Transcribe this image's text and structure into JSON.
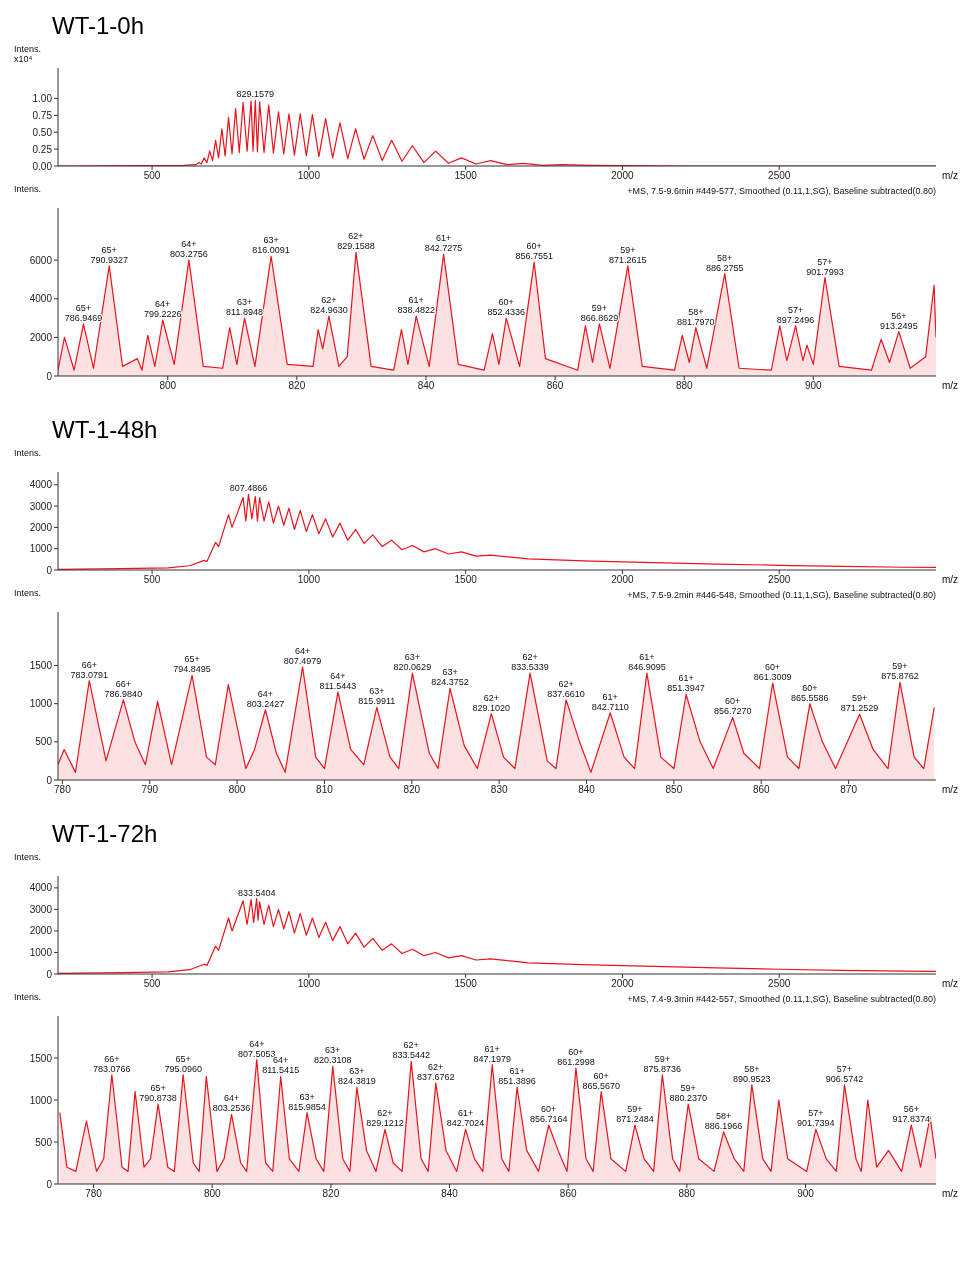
{
  "chart_data": [
    {
      "type": "line",
      "title": "WT-1-0h",
      "ylabel": "Intens.\nx10⁴",
      "xlabel": "m/z",
      "color": "#e8141c",
      "xlim": [
        200,
        3000
      ],
      "xticks": [
        500,
        1000,
        1500,
        2000,
        2500
      ],
      "ylim": [
        0,
        1.45
      ],
      "yticks": [
        {
          "value": 0,
          "label": "0.00"
        },
        {
          "value": 0.25,
          "label": "0.25"
        },
        {
          "value": 0.5,
          "label": "0.50"
        },
        {
          "value": 0.75,
          "label": "0.75"
        },
        {
          "value": 1,
          "label": "1.00"
        }
      ],
      "x": [
        200,
        600,
        640,
        648.7,
        657,
        665.7,
        675,
        683.7,
        693,
        702.6,
        712,
        722.7,
        733,
        743.9,
        755,
        766.4,
        778,
        790.3,
        803,
        815.8,
        822,
        829.1579,
        836,
        843,
        857,
        872,
        887,
        903.1,
        920,
        936.5,
        954,
        972.5,
        992,
        1011.3,
        1032,
        1053.4,
        1076,
        1099.2,
        1124,
        1149.1,
        1176,
        1203.8,
        1234,
        1263.9,
        1297,
        1330.4,
        1367,
        1404.3,
        1445,
        1486.8,
        1533,
        1579.7,
        1632,
        1684.9,
        1745,
        1805.2,
        1900,
        2200,
        3000
      ],
      "values": [
        0,
        0.01,
        0.02,
        0.05,
        0.03,
        0.12,
        0.05,
        0.22,
        0.08,
        0.38,
        0.12,
        0.55,
        0.15,
        0.72,
        0.18,
        0.85,
        0.2,
        0.94,
        0.22,
        0.96,
        0.22,
        0.97,
        0.21,
        0.95,
        0.2,
        0.9,
        0.19,
        0.8,
        0.18,
        0.77,
        0.16,
        0.77,
        0.15,
        0.76,
        0.14,
        0.7,
        0.12,
        0.64,
        0.11,
        0.55,
        0.1,
        0.45,
        0.08,
        0.38,
        0.07,
        0.3,
        0.05,
        0.22,
        0.04,
        0.12,
        0.03,
        0.08,
        0.02,
        0.04,
        0.01,
        0.02,
        0.01,
        0,
        0
      ],
      "annotations": [
        {
          "text": "829.1579",
          "x": 829.1579,
          "y": 0.97
        }
      ]
    },
    {
      "type": "area",
      "ylabel": "Intens.",
      "xlabel": "m/z",
      "color": "#e8141c",
      "xlim": [
        783,
        919
      ],
      "xticks": [
        800,
        820,
        840,
        860,
        880,
        900
      ],
      "ylim": [
        0,
        8700
      ],
      "yticks": [
        0,
        2000,
        4000,
        6000
      ],
      "x": [
        783,
        784,
        785.5,
        786.9469,
        788.5,
        790.9327,
        793,
        795.3,
        796,
        796.9,
        798,
        799.2226,
        801,
        803.2756,
        805.5,
        808.5,
        809.6,
        810.7,
        811.8948,
        813.5,
        816.0091,
        818.5,
        822.5,
        823.3,
        824,
        824.963,
        826.5,
        827.8,
        829.1588,
        831.5,
        835,
        836.2,
        837.2,
        838.4822,
        840.5,
        842.7275,
        845,
        849,
        850.3,
        851.3,
        852.4336,
        854.5,
        856.7551,
        858.5,
        863.5,
        864.7,
        865.8,
        866.8629,
        868.5,
        871.2615,
        873.5,
        878.5,
        879.7,
        880.8,
        881.797,
        883.5,
        886.2755,
        888.5,
        893.5,
        894.8,
        895.9,
        897.2496,
        898.4,
        899,
        900,
        901.7993,
        904,
        909,
        910.5,
        911.8,
        913.2495,
        915,
        917.4,
        918.7,
        919
      ],
      "values": [
        300,
        2000,
        300,
        2700,
        400,
        5700,
        500,
        900,
        300,
        2100,
        500,
        2900,
        600,
        6000,
        500,
        400,
        2500,
        600,
        3000,
        500,
        6200,
        600,
        500,
        2400,
        1400,
        3100,
        500,
        1000,
        6400,
        500,
        300,
        2400,
        600,
        3100,
        500,
        6300,
        600,
        300,
        2200,
        600,
        3000,
        500,
        5900,
        900,
        300,
        2600,
        700,
        2700,
        400,
        5700,
        500,
        300,
        2100,
        700,
        2500,
        400,
        5300,
        400,
        300,
        2600,
        800,
        2600,
        800,
        1600,
        600,
        5100,
        500,
        300,
        1900,
        700,
        2300,
        400,
        1000,
        4700,
        2000
      ],
      "annotations": [
        "+MS, 7.5-9.6min #449-577, Smoothed (0.11,1,SG), Baseline subtracted(0.80)",
        {
          "text": "65+\n786.9469",
          "x": 786.9469,
          "y": 2700
        },
        {
          "text": "65+\n790.9327",
          "x": 790.9327,
          "y": 5700
        },
        {
          "text": "64+\n799.2226",
          "x": 799.2226,
          "y": 2900
        },
        {
          "text": "64+\n803.2756",
          "x": 803.2756,
          "y": 6000
        },
        {
          "text": "63+\n811.8948",
          "x": 811.8948,
          "y": 3000
        },
        {
          "text": "63+\n816.0091",
          "x": 816.0091,
          "y": 6200
        },
        {
          "text": "62+\n824.9630",
          "x": 824.963,
          "y": 3100
        },
        {
          "text": "62+\n829.1588",
          "x": 829.1588,
          "y": 6400
        },
        {
          "text": "61+\n838.4822",
          "x": 838.4822,
          "y": 3100
        },
        {
          "text": "61+\n842.7275",
          "x": 842.7275,
          "y": 6300
        },
        {
          "text": "60+\n852.4336",
          "x": 852.4336,
          "y": 3000
        },
        {
          "text": "60+\n856.7551",
          "x": 856.7551,
          "y": 5900
        },
        {
          "text": "59+\n866.8629",
          "x": 866.8629,
          "y": 2700
        },
        {
          "text": "59+\n871.2615",
          "x": 871.2615,
          "y": 5700
        },
        {
          "text": "58+\n881.7970",
          "x": 881.797,
          "y": 2500
        },
        {
          "text": "58+\n886.2755",
          "x": 886.2755,
          "y": 5300
        },
        {
          "text": "57+\n897.2496",
          "x": 897.2496,
          "y": 2600
        },
        {
          "text": "57+\n901.7993",
          "x": 901.7993,
          "y": 5100
        },
        {
          "text": "56+\n913.2495",
          "x": 913.2495,
          "y": 2300
        }
      ]
    },
    {
      "type": "line",
      "title": "WT-1-48h",
      "ylabel": "Intens.",
      "xlabel": "m/z",
      "color": "#e8141c",
      "xlim": [
        200,
        3000
      ],
      "xticks": [
        500,
        1000,
        1500,
        2000,
        2500
      ],
      "ylim": [
        0,
        4600
      ],
      "yticks": [
        0,
        1000,
        2000,
        3000,
        4000
      ],
      "x": [
        200,
        400,
        550,
        620,
        665.7,
        675,
        702.6,
        712,
        743.9,
        755,
        790.3,
        799,
        807.4866,
        818,
        829.2,
        836,
        843,
        857,
        872,
        887,
        903.1,
        920,
        936.5,
        954,
        972.5,
        992,
        1011.3,
        1032,
        1053.4,
        1076,
        1099.2,
        1124,
        1149.1,
        1176,
        1203.8,
        1234,
        1263.9,
        1297,
        1330.4,
        1367,
        1404.3,
        1445,
        1486.8,
        1533,
        1579.7,
        1700,
        1900,
        2100,
        2300,
        2500,
        2700,
        2900,
        3000
      ],
      "values": [
        30,
        60,
        100,
        200,
        450,
        400,
        1300,
        1100,
        2600,
        2000,
        3400,
        2300,
        3550,
        2400,
        3450,
        2300,
        3400,
        2300,
        3200,
        2200,
        3000,
        2100,
        2900,
        1900,
        2800,
        1800,
        2600,
        1700,
        2400,
        1550,
        2200,
        1400,
        1900,
        1250,
        1650,
        1100,
        1400,
        950,
        1150,
        850,
        1000,
        750,
        850,
        650,
        700,
        520,
        420,
        350,
        280,
        220,
        170,
        130,
        120
      ],
      "annotations": [
        {
          "text": "807.4866",
          "x": 807.4866,
          "y": 3550
        }
      ]
    },
    {
      "type": "area",
      "ylabel": "Intens.",
      "xlabel": "m/z",
      "color": "#e8141c",
      "xlim": [
        779.5,
        880
      ],
      "xticks": [
        780,
        790,
        800,
        810,
        820,
        830,
        840,
        850,
        860,
        870
      ],
      "ylim": [
        0,
        2200
      ],
      "yticks": [
        0,
        500,
        1000,
        1500
      ],
      "x": [
        779.5,
        780.2,
        781.5,
        783.0791,
        785,
        786.984,
        788.3,
        789.5,
        790.9,
        792.5,
        794.8495,
        796.5,
        797.5,
        799,
        801,
        802,
        803.2427,
        804.5,
        805.5,
        807.4979,
        809,
        810,
        811.5443,
        813,
        814.5,
        815.9911,
        817.5,
        818.5,
        820.0629,
        822,
        823,
        824.3752,
        826,
        827.5,
        829.102,
        830.5,
        831.8,
        833.5339,
        835.5,
        836.5,
        837.661,
        839.2,
        840.5,
        842.711,
        844.3,
        845.5,
        846.9095,
        848.5,
        850,
        851.3947,
        853,
        854.5,
        856.727,
        858,
        859.8,
        861.3009,
        863,
        864.3,
        865.5586,
        867,
        868.5,
        871.2529,
        872.8,
        874.5,
        875.8762,
        877.5,
        878.6,
        879.8
      ],
      "values": [
        200,
        400,
        100,
        1300,
        250,
        1050,
        500,
        200,
        1030,
        200,
        1370,
        300,
        200,
        1250,
        150,
        400,
        920,
        350,
        100,
        1480,
        300,
        150,
        1150,
        400,
        200,
        950,
        300,
        150,
        1400,
        350,
        150,
        1200,
        450,
        150,
        870,
        300,
        150,
        1400,
        250,
        150,
        1050,
        500,
        100,
        880,
        300,
        150,
        1400,
        300,
        150,
        1120,
        500,
        150,
        820,
        350,
        150,
        1270,
        300,
        150,
        1000,
        500,
        150,
        860,
        400,
        150,
        1280,
        300,
        150,
        950
      ],
      "annotations": [
        "+MS, 7.5-9.2min #446-548, Smoothed (0.11,1,SG), Baseline subtracted(0.80)",
        {
          "text": "66+\n783.0791",
          "x": 783.0791,
          "y": 1300
        },
        {
          "text": "66+\n786.9840",
          "x": 786.984,
          "y": 1050
        },
        {
          "text": "65+\n794.8495",
          "x": 794.8495,
          "y": 1370
        },
        {
          "text": "64+\n803.2427",
          "x": 803.2427,
          "y": 920
        },
        {
          "text": "64+\n807.4979",
          "x": 807.4979,
          "y": 1480
        },
        {
          "text": "64+\n811.5443",
          "x": 811.5443,
          "y": 1150
        },
        {
          "text": "63+\n815.9911",
          "x": 815.9911,
          "y": 950
        },
        {
          "text": "63+\n820.0629",
          "x": 820.0629,
          "y": 1400
        },
        {
          "text": "63+\n824.3752",
          "x": 824.3752,
          "y": 1200
        },
        {
          "text": "62+\n829.1020",
          "x": 829.102,
          "y": 870
        },
        {
          "text": "62+\n833.5339",
          "x": 833.5339,
          "y": 1400
        },
        {
          "text": "62+\n837.6610",
          "x": 837.661,
          "y": 1050
        },
        {
          "text": "61+\n842.7110",
          "x": 842.711,
          "y": 880
        },
        {
          "text": "61+\n846.9095",
          "x": 846.9095,
          "y": 1400
        },
        {
          "text": "61+\n851.3947",
          "x": 851.3947,
          "y": 1120
        },
        {
          "text": "60+\n856.7270",
          "x": 856.727,
          "y": 820
        },
        {
          "text": "60+\n861.3009",
          "x": 861.3009,
          "y": 1270
        },
        {
          "text": "60+\n865.5586",
          "x": 865.5586,
          "y": 1000
        },
        {
          "text": "59+\n871.2529",
          "x": 871.2529,
          "y": 860
        },
        {
          "text": "59+\n875.8762",
          "x": 875.8762,
          "y": 1280
        }
      ]
    },
    {
      "type": "line",
      "title": "WT-1-72h",
      "ylabel": "Intens.",
      "xlabel": "m/z",
      "color": "#e8141c",
      "xlim": [
        200,
        3000
      ],
      "xticks": [
        500,
        1000,
        1500,
        2000,
        2500
      ],
      "ylim": [
        0,
        4550
      ],
      "yticks": [
        0,
        1000,
        2000,
        3000,
        4000
      ],
      "x": [
        200,
        400,
        550,
        620,
        665.7,
        675,
        702.6,
        712,
        743.9,
        755,
        790.3,
        803,
        815.8,
        824,
        833.5404,
        838,
        843,
        857,
        872,
        887,
        903.1,
        920,
        936.5,
        954,
        972.5,
        992,
        1011.3,
        1032,
        1053.4,
        1076,
        1099.2,
        1124,
        1149.1,
        1176,
        1203.8,
        1234,
        1263.9,
        1297,
        1330.4,
        1367,
        1404.3,
        1445,
        1486.8,
        1533,
        1579.7,
        1700,
        1900,
        2100,
        2300,
        2500,
        2700,
        2900,
        3000
      ],
      "values": [
        30,
        60,
        100,
        200,
        450,
        400,
        1300,
        1100,
        2600,
        2000,
        3400,
        2300,
        3450,
        2400,
        3500,
        2500,
        3350,
        2300,
        3200,
        2200,
        3000,
        2100,
        2900,
        1900,
        2800,
        1800,
        2600,
        1700,
        2400,
        1550,
        2200,
        1400,
        1900,
        1250,
        1650,
        1100,
        1400,
        950,
        1150,
        850,
        1000,
        750,
        850,
        650,
        700,
        520,
        420,
        350,
        280,
        220,
        170,
        130,
        120
      ],
      "annotations": [
        {
          "text": "833.5404",
          "x": 833.5404,
          "y": 3500
        }
      ]
    },
    {
      "type": "area",
      "ylabel": "Intens.",
      "xlabel": "m/z",
      "color": "#e8141c",
      "xlim": [
        774,
        922
      ],
      "xticks": [
        780,
        800,
        820,
        840,
        860,
        880,
        900
      ],
      "ylim": [
        0,
        2000
      ],
      "yticks": [
        0,
        500,
        1000,
        1500
      ],
      "x": [
        774.3,
        775.5,
        777,
        778.8,
        780.5,
        781.7,
        783.0766,
        784.8,
        785.8,
        787,
        788.5,
        789.6,
        790.8738,
        792.5,
        793.6,
        795.096,
        796.8,
        797.8,
        799,
        800.8,
        802,
        803.2536,
        804.8,
        805.8,
        807.5053,
        809,
        810.2,
        811.5415,
        813,
        814.6,
        815.9854,
        817.5,
        818.8,
        820.3108,
        822,
        823.2,
        824.3819,
        826,
        827.6,
        829.1212,
        830.5,
        832,
        833.5442,
        835.2,
        836.4,
        837.6762,
        839.4,
        841.2,
        842.7024,
        844.2,
        845.6,
        847.1979,
        848.8,
        850,
        851.3896,
        853,
        855,
        856.7164,
        858.3,
        859.8,
        861.2998,
        863,
        864.2,
        865.567,
        867.2,
        869.7,
        871.2484,
        872.8,
        874.4,
        875.8736,
        877.6,
        878.8,
        880.237,
        882,
        884.6,
        886.1966,
        888,
        889.6,
        890.9523,
        892.8,
        894.2,
        895.5,
        897,
        900.2,
        901.7394,
        903.5,
        905.2,
        906.5742,
        908.5,
        909.4,
        910.5,
        912,
        914,
        916.2,
        917.8374,
        919.4,
        921,
        922
      ],
      "values": [
        850,
        200,
        150,
        750,
        150,
        300,
        1300,
        200,
        150,
        1100,
        200,
        300,
        950,
        200,
        150,
        1300,
        250,
        150,
        1280,
        150,
        300,
        830,
        250,
        150,
        1480,
        250,
        150,
        1280,
        300,
        150,
        850,
        300,
        150,
        1400,
        300,
        150,
        1150,
        400,
        150,
        650,
        250,
        150,
        1460,
        300,
        150,
        1200,
        400,
        150,
        650,
        300,
        150,
        1420,
        300,
        150,
        1150,
        400,
        150,
        700,
        400,
        150,
        1380,
        300,
        150,
        1100,
        300,
        150,
        700,
        300,
        150,
        1300,
        300,
        150,
        950,
        300,
        150,
        620,
        300,
        150,
        1180,
        300,
        150,
        1000,
        300,
        150,
        650,
        300,
        150,
        1180,
        300,
        150,
        1000,
        200,
        400,
        150,
        700,
        200,
        800,
        300
      ],
      "annotations": [
        "+MS, 7.4-9.3min #442-557, Smoothed (0.11,1,SG), Baseline subtracted(0.80)",
        {
          "text": "66+\n783.0766",
          "x": 783.0766,
          "y": 1300
        },
        {
          "text": "65+\n790.8738",
          "x": 790.8738,
          "y": 950
        },
        {
          "text": "65+\n795.0960",
          "x": 795.096,
          "y": 1300
        },
        {
          "text": "64+\n803.2536",
          "x": 803.2536,
          "y": 830
        },
        {
          "text": "64+\n807.5053",
          "x": 807.5053,
          "y": 1480
        },
        {
          "text": "64+\n811.5415",
          "x": 811.5415,
          "y": 1280
        },
        {
          "text": "63+\n815.9854",
          "x": 815.9854,
          "y": 850
        },
        {
          "text": "63+\n820.3108",
          "x": 820.3108,
          "y": 1400
        },
        {
          "text": "63+\n824.3819",
          "x": 824.3819,
          "y": 1150
        },
        {
          "text": "62+\n829.1212",
          "x": 829.1212,
          "y": 650
        },
        {
          "text": "62+\n833.5442",
          "x": 833.5442,
          "y": 1460
        },
        {
          "text": "62+\n837.6762",
          "x": 837.6762,
          "y": 1200
        },
        {
          "text": "61+\n842.7024",
          "x": 842.7024,
          "y": 650
        },
        {
          "text": "61+\n847.1979",
          "x": 847.1979,
          "y": 1420
        },
        {
          "text": "61+\n851.3896",
          "x": 851.3896,
          "y": 1150
        },
        {
          "text": "60+\n856.7164",
          "x": 856.7164,
          "y": 700
        },
        {
          "text": "60+\n861.2998",
          "x": 861.2998,
          "y": 1380
        },
        {
          "text": "60+\n865.5670",
          "x": 865.567,
          "y": 1100
        },
        {
          "text": "59+\n871.2484",
          "x": 871.2484,
          "y": 700
        },
        {
          "text": "59+\n875.8736",
          "x": 875.8736,
          "y": 1300
        },
        {
          "text": "59+\n880.2370",
          "x": 880.237,
          "y": 950
        },
        {
          "text": "58+\n886.1966",
          "x": 886.1966,
          "y": 620
        },
        {
          "text": "58+\n890.9523",
          "x": 890.9523,
          "y": 1180
        },
        {
          "text": "57+\n901.7394",
          "x": 901.7394,
          "y": 650
        },
        {
          "text": "57+\n906.5742",
          "x": 906.5742,
          "y": 1180
        },
        {
          "text": "56+\n917.8374",
          "x": 917.8374,
          "y": 700
        }
      ]
    }
  ]
}
